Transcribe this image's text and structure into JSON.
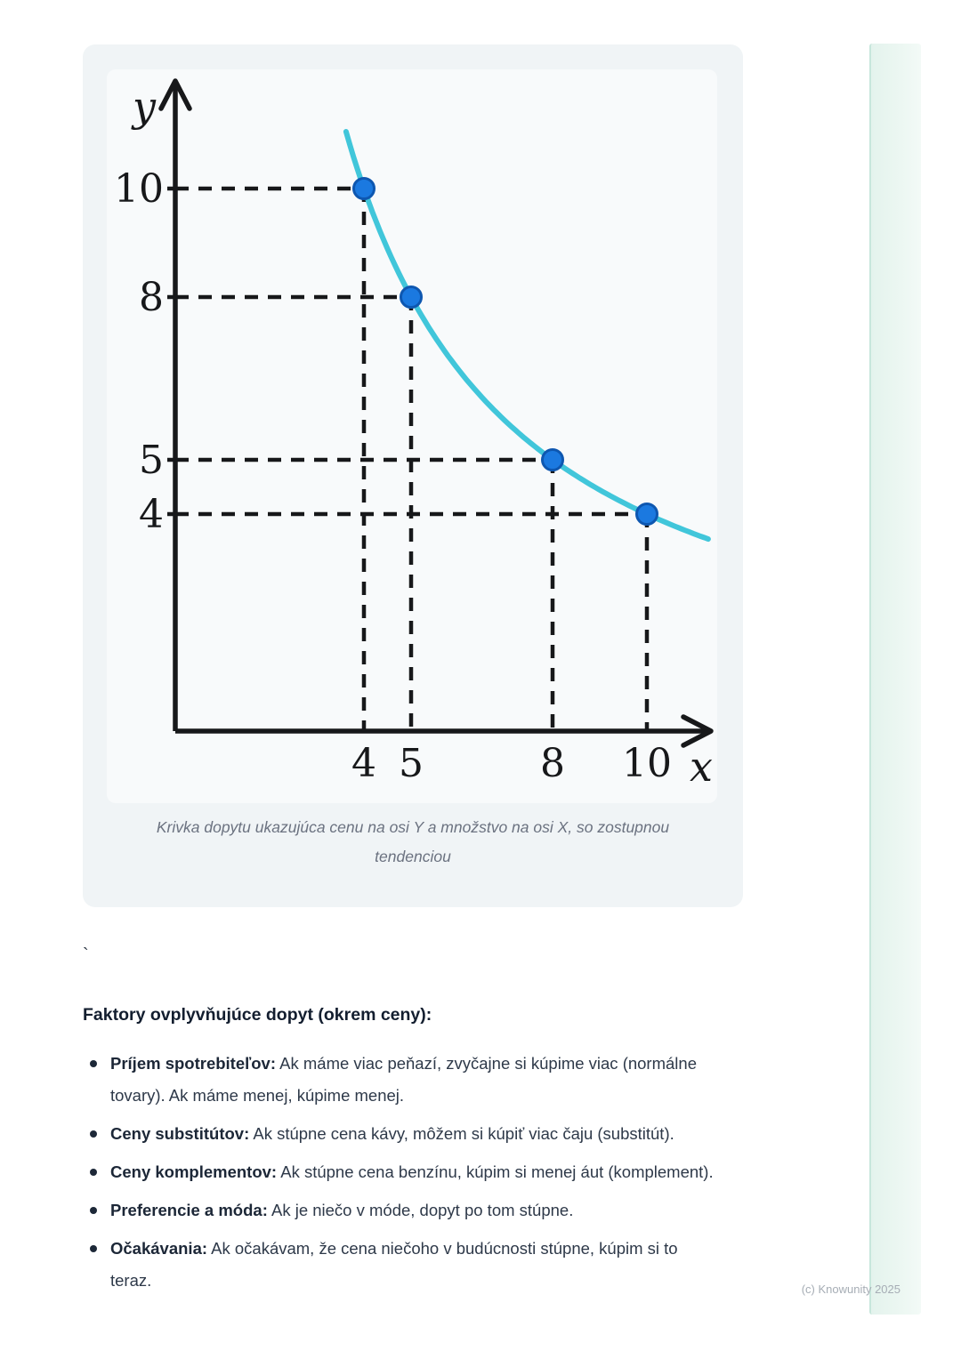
{
  "figure": {
    "caption": "Krivka dopytu ukazujúca cenu na osi Y a množstvo na osi X, so zostupnou tendenciou"
  },
  "chart_data": {
    "type": "line",
    "title": "",
    "xlabel": "x",
    "ylabel": "y",
    "curve_equation": "y = 40/x (demand curve, downward sloping)",
    "k": 40,
    "points": [
      {
        "x": 4,
        "y": 10
      },
      {
        "x": 5,
        "y": 8
      },
      {
        "x": 8,
        "y": 5
      },
      {
        "x": 10,
        "y": 4
      }
    ],
    "x_ticks": [
      "4",
      "5",
      "8",
      "10"
    ],
    "y_ticks": [
      "10",
      "8",
      "5",
      "4"
    ],
    "x_drawn_range": [
      3.62,
      11.3
    ],
    "grid": false,
    "legend_position": null,
    "guide_style": "dashed",
    "colors": {
      "axis": "#17181a",
      "curve": "#41c6da",
      "point_fill": "#1b79e0",
      "point_stroke": "#0e57b0"
    }
  },
  "content": {
    "stray_text": "`",
    "heading": "Faktory ovplyvňujúce dopyt (okrem ceny):",
    "factors": [
      {
        "label": "Príjem spotrebiteľov:",
        "text": " Ak máme viac peňazí, zvyčajne si kúpime viac (normálne tovary). Ak máme menej, kúpime menej."
      },
      {
        "label": "Ceny substitútov:",
        "text": " Ak stúpne cena kávy, môžem si kúpiť viac čaju (substitút)."
      },
      {
        "label": "Ceny komplementov:",
        "text": " Ak stúpne cena benzínu, kúpim si menej áut (komplement)."
      },
      {
        "label": "Preferencie a móda:",
        "text": " Ak je niečo v móde, dopyt po tom stúpne."
      },
      {
        "label": "Očakávania:",
        "text": " Ak očakávam, že cena niečoho v budúcnosti stúpne, kúpim si to teraz."
      }
    ]
  },
  "footer": {
    "copyright": "(c) Knowunity 2025"
  }
}
